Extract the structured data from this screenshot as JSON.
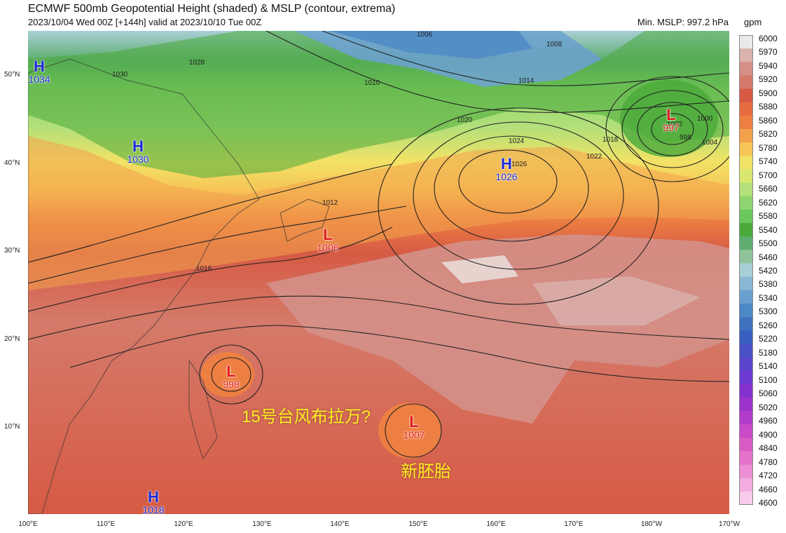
{
  "header": {
    "title": "ECMWF 500mb Geopotential Height (shaded) & MSLP (contour, extrema)",
    "subtitle": "2023/10/04 Wed 00Z [+144h] valid at 2023/10/10 Tue 00Z",
    "min_mslp": "Min. MSLP: 997.2 hPa",
    "colorbar_unit": "gpm"
  },
  "axes": {
    "lat_labels": [
      "50°N",
      "40°N",
      "30°N",
      "20°N",
      "10°N"
    ],
    "lon_labels": [
      "100°E",
      "110°E",
      "120°E",
      "130°E",
      "140°E",
      "150°E",
      "160°E",
      "170°E",
      "180°W",
      "170°W"
    ]
  },
  "colorbar": {
    "labels": [
      "6000",
      "5970",
      "5940",
      "5920",
      "5900",
      "5880",
      "5860",
      "5820",
      "5780",
      "5740",
      "5700",
      "5660",
      "5620",
      "5580",
      "5540",
      "5500",
      "5460",
      "5420",
      "5380",
      "5340",
      "5300",
      "5260",
      "5220",
      "5180",
      "5140",
      "5100",
      "5060",
      "5020",
      "4960",
      "4900",
      "4840",
      "4780",
      "4720",
      "4660",
      "4600"
    ],
    "colors": [
      "#e9e9e9",
      "#d9b2ac",
      "#d49088",
      "#d57a6a",
      "#d65a44",
      "#e66b40",
      "#ed7f43",
      "#f2a24d",
      "#f6c557",
      "#f2e266",
      "#d9e76e",
      "#b3e07a",
      "#8fd56f",
      "#6cc65e",
      "#4aaa3a",
      "#5fae70",
      "#8fc39a",
      "#a9cfd6",
      "#8cb7d4",
      "#6aa0ce",
      "#4d88c6",
      "#3f72c0",
      "#3a5fc0",
      "#4a52c8",
      "#5a46cc",
      "#6c3ad0",
      "#8431cf",
      "#9c34cc",
      "#b33cca",
      "#c84ac6",
      "#d95cc4",
      "#e472c9",
      "#ec8ed5",
      "#f2acdf",
      "#f7cbea"
    ]
  },
  "extrema": [
    {
      "type": "H",
      "value": "1034",
      "color": "#1d2bd6"
    },
    {
      "type": "H",
      "value": "1030",
      "color": "#1d2bd6"
    },
    {
      "type": "H",
      "value": "1026",
      "color": "#1d2bd6"
    },
    {
      "type": "H",
      "value": "1018",
      "color": "#1d2bd6"
    },
    {
      "type": "L",
      "value": "1006",
      "color": "#e01a1a"
    },
    {
      "type": "L",
      "value": "998",
      "color": "#e01a1a"
    },
    {
      "type": "L",
      "value": "1007",
      "color": "#e01a1a"
    },
    {
      "type": "L",
      "value": "997",
      "color": "#e01a1a"
    }
  ],
  "contour_labels": [
    "1024",
    "1026",
    "1028",
    "1030",
    "1022",
    "1020",
    "1018",
    "1016",
    "1014",
    "1012",
    "1010",
    "1008",
    "1006",
    "1004",
    "1002",
    "1000",
    "998"
  ],
  "annotations": [
    {
      "text": "15号台风布拉万?",
      "color": "#ffee22"
    },
    {
      "text": "新胚胎",
      "color": "#ffee22"
    }
  ]
}
